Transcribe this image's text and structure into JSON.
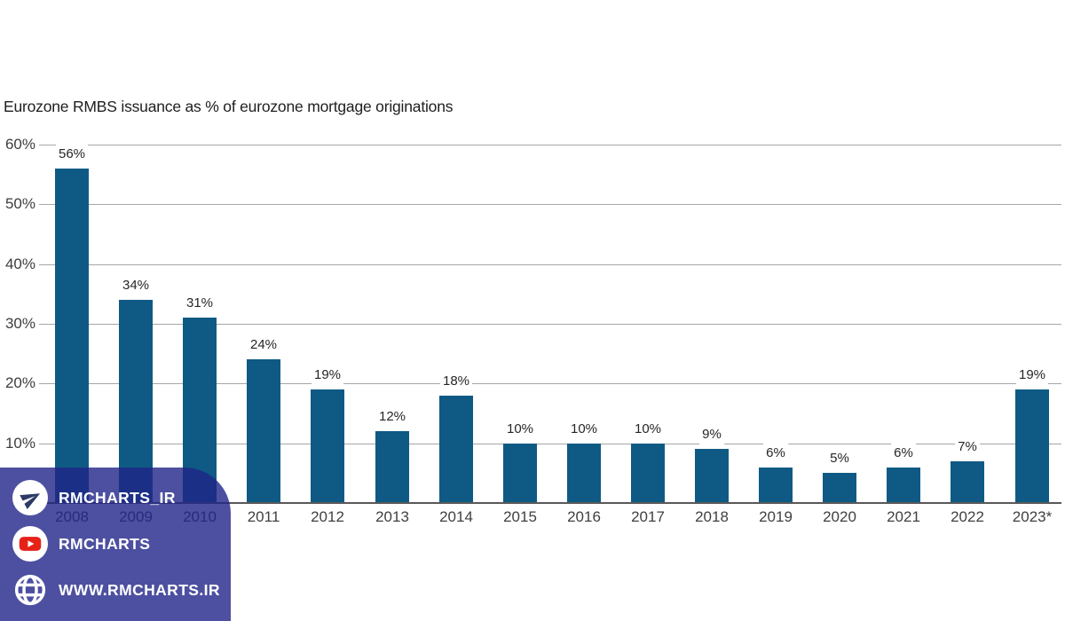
{
  "chart": {
    "title": "Eurozone RMBS issuance as % of eurozone mortgage originations"
  },
  "chart_data": {
    "type": "bar",
    "title": "Eurozone RMBS issuance as % of eurozone mortgage originations",
    "categories": [
      "2008",
      "2009",
      "2010",
      "2011",
      "2012",
      "2013",
      "2014",
      "2015",
      "2016",
      "2017",
      "2018",
      "2019",
      "2020",
      "2021",
      "2022",
      "2023*"
    ],
    "values": [
      56,
      34,
      31,
      24,
      19,
      12,
      18,
      10,
      10,
      10,
      9,
      6,
      5,
      6,
      7,
      19
    ],
    "value_labels": [
      "56%",
      "34%",
      "31%",
      "24%",
      "19%",
      "12%",
      "18%",
      "10%",
      "10%",
      "10%",
      "9%",
      "6%",
      "5%",
      "6%",
      "7%",
      "19%"
    ],
    "y_ticks": [
      10,
      20,
      30,
      40,
      50,
      60
    ],
    "y_tick_labels": [
      "10%",
      "20%",
      "30%",
      "40%",
      "50%",
      "60%"
    ],
    "ylim": [
      0,
      60
    ],
    "xlabel": "",
    "ylabel": "",
    "grid": true,
    "legend": "none",
    "bar_color": "#0e5a84",
    "gridline_color": "#a6a6a6",
    "axis_line_color": "#595959"
  },
  "watermark": {
    "background_color": "#202488",
    "opacity": 0.8,
    "text_color": "#ffffff",
    "youtube_red": "#e62117",
    "telegram_plane_color": "#2e3a66",
    "items": [
      {
        "icon": "telegram-icon",
        "label": "RMCHARTS_IR"
      },
      {
        "icon": "youtube-icon",
        "label": "RMCHARTS"
      },
      {
        "icon": "globe-icon",
        "label": "WWW.RMCHARTS.IR"
      }
    ]
  }
}
